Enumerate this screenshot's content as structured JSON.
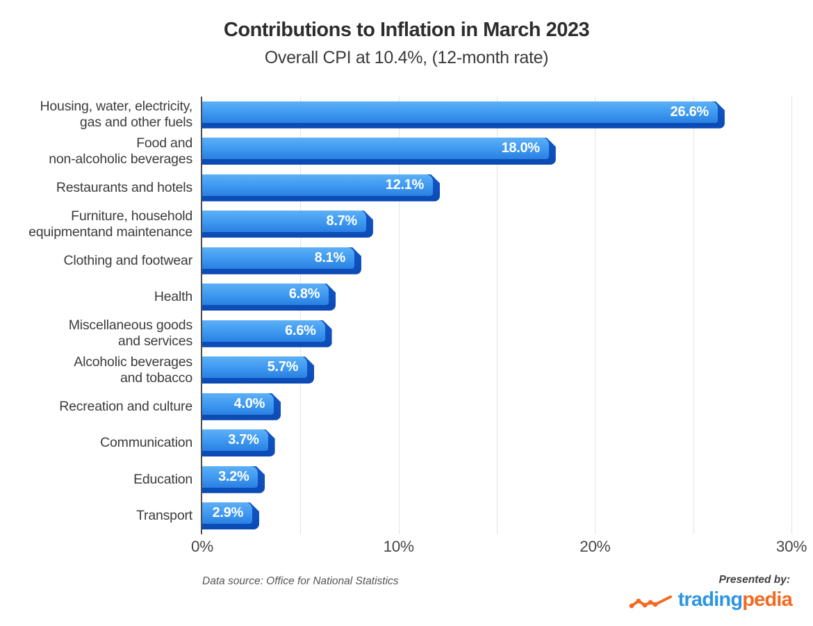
{
  "header": {
    "title": "Contributions to Inflation in March 2023",
    "subtitle": "Overall CPI at 10.4%, (12-month rate)"
  },
  "chart_data": {
    "type": "bar",
    "orientation": "horizontal",
    "title": "Contributions to Inflation in March 2023",
    "subtitle": "Overall CPI at 10.4%, (12-month rate)",
    "categories": [
      "Housing, water, electricity, gas and other fuels",
      "Food and non-alcoholic beverages",
      "Restaurants and hotels",
      "Furniture, household equipmentand maintenance",
      "Clothing and footwear",
      "Health",
      "Miscellaneous goods and services",
      "Alcoholic beverages and tobacco",
      "Recreation and culture",
      "Communication",
      "Education",
      "Transport"
    ],
    "category_display": [
      [
        "Housing, water, electricity,",
        "gas and other fuels"
      ],
      [
        "Food and",
        "non-alcoholic beverages"
      ],
      [
        "Restaurants and hotels"
      ],
      [
        "Furniture, household",
        "equipmentand maintenance"
      ],
      [
        "Clothing and footwear"
      ],
      [
        "Health"
      ],
      [
        "Miscellaneous goods",
        "and services"
      ],
      [
        "Alcoholic beverages",
        "and tobacco"
      ],
      [
        "Recreation and culture"
      ],
      [
        "Communication"
      ],
      [
        "Education"
      ],
      [
        "Transport"
      ]
    ],
    "values": [
      26.6,
      18.0,
      12.1,
      8.7,
      8.1,
      6.8,
      6.6,
      5.7,
      4.0,
      3.7,
      3.2,
      2.9
    ],
    "value_labels": [
      "26.6%",
      "18.0%",
      "12.1%",
      "8.7%",
      "8.1%",
      "6.8%",
      "6.6%",
      "5.7%",
      "4.0%",
      "3.7%",
      "3.2%",
      "2.9%"
    ],
    "xlabel": "",
    "ylabel": "",
    "xlim": [
      0,
      30
    ],
    "x_tick_labels": [
      "0%",
      "10%",
      "20%",
      "30%"
    ],
    "grid": "vertical gridlines every 5%, light gray; dark vertical axis at 0%",
    "legend": "none",
    "colors": {
      "bar-top": "#5cb0f6",
      "bar-mid": "#3e98f0",
      "bar-bottom": "#2a80e2",
      "bar-shadow-top": "#1157c8",
      "bar-shadow-bottom": "#0b4ab4"
    }
  },
  "footer": {
    "data_source": "Data source: Office for National Statistics",
    "presented_by": "Presented by:",
    "logo": {
      "icon": "line-chart-squiggle-icon",
      "text_primary": "trading",
      "text_secondary": "pedia",
      "primary_color": "#2e95e5",
      "secondary_color": "#f26a21",
      "icon_color": "#f26a21"
    }
  }
}
